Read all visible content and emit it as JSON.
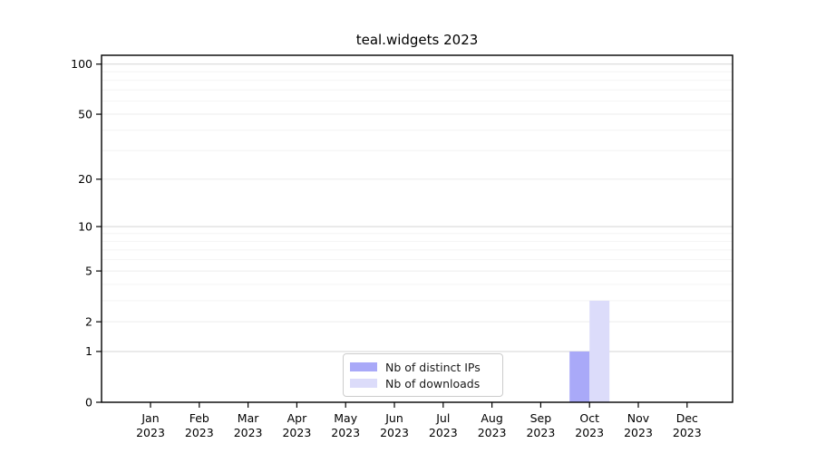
{
  "title": "teal.widgets 2023",
  "chart_data": {
    "type": "bar",
    "title": "teal.widgets 2023",
    "x_months": [
      "Jan",
      "Feb",
      "Mar",
      "Apr",
      "May",
      "Jun",
      "Jul",
      "Aug",
      "Sep",
      "Oct",
      "Nov",
      "Dec"
    ],
    "x_year": "2023",
    "series": [
      {
        "name": "Nb of distinct IPs",
        "color": "#a9a9f8",
        "values": [
          0,
          0,
          0,
          0,
          0,
          0,
          0,
          0,
          0,
          1,
          0,
          0
        ]
      },
      {
        "name": "Nb of downloads",
        "color": "#dcdcfa",
        "values": [
          0,
          0,
          0,
          0,
          0,
          0,
          0,
          0,
          0,
          3,
          0,
          0
        ]
      }
    ],
    "y_scale": "log10(1+v)",
    "y_ticks": [
      0,
      1,
      2,
      5,
      10,
      20,
      50,
      100
    ],
    "y_minor_ticks": [
      3,
      4,
      6,
      7,
      8,
      9,
      30,
      40,
      60,
      70,
      80,
      90
    ],
    "ylim": [
      0,
      113
    ],
    "grid": "horizontal",
    "legend_position": "inside-bottom-center",
    "axis_color": "#000000",
    "grid_color_decade": "#d5d5d5",
    "grid_color_major": "#ececec",
    "grid_color_minor": "#f4f4f4"
  }
}
